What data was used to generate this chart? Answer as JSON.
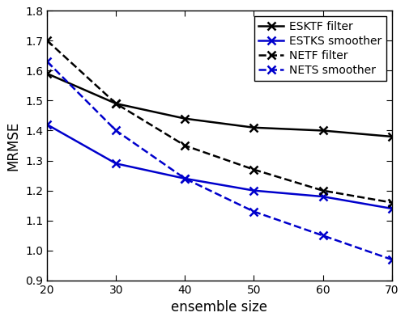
{
  "x": [
    20,
    30,
    40,
    50,
    60,
    70
  ],
  "esktf": [
    1.59,
    1.49,
    1.44,
    1.41,
    1.4,
    1.38
  ],
  "estks": [
    1.42,
    1.29,
    1.24,
    1.2,
    1.18,
    1.14
  ],
  "netf": [
    1.7,
    1.49,
    1.35,
    1.27,
    1.2,
    1.16
  ],
  "nets": [
    1.63,
    1.4,
    1.24,
    1.13,
    1.05,
    0.97
  ],
  "esktf_color": "#000000",
  "estks_color": "#0000cc",
  "netf_color": "#000000",
  "nets_color": "#0000cc",
  "xlabel": "ensemble size",
  "ylabel": "MRMSE",
  "xlim": [
    20,
    70
  ],
  "ylim": [
    0.9,
    1.8
  ],
  "yticks": [
    0.9,
    1.0,
    1.1,
    1.2,
    1.3,
    1.4,
    1.5,
    1.6,
    1.7,
    1.8
  ],
  "xticks": [
    20,
    30,
    40,
    50,
    60,
    70
  ],
  "legend_labels": [
    "ESKTF filter",
    "ESTKS smoother",
    "NETF filter",
    "NETS smoother"
  ],
  "marker": "x",
  "linewidth": 1.8,
  "markersize": 7,
  "markeredgewidth": 1.8
}
